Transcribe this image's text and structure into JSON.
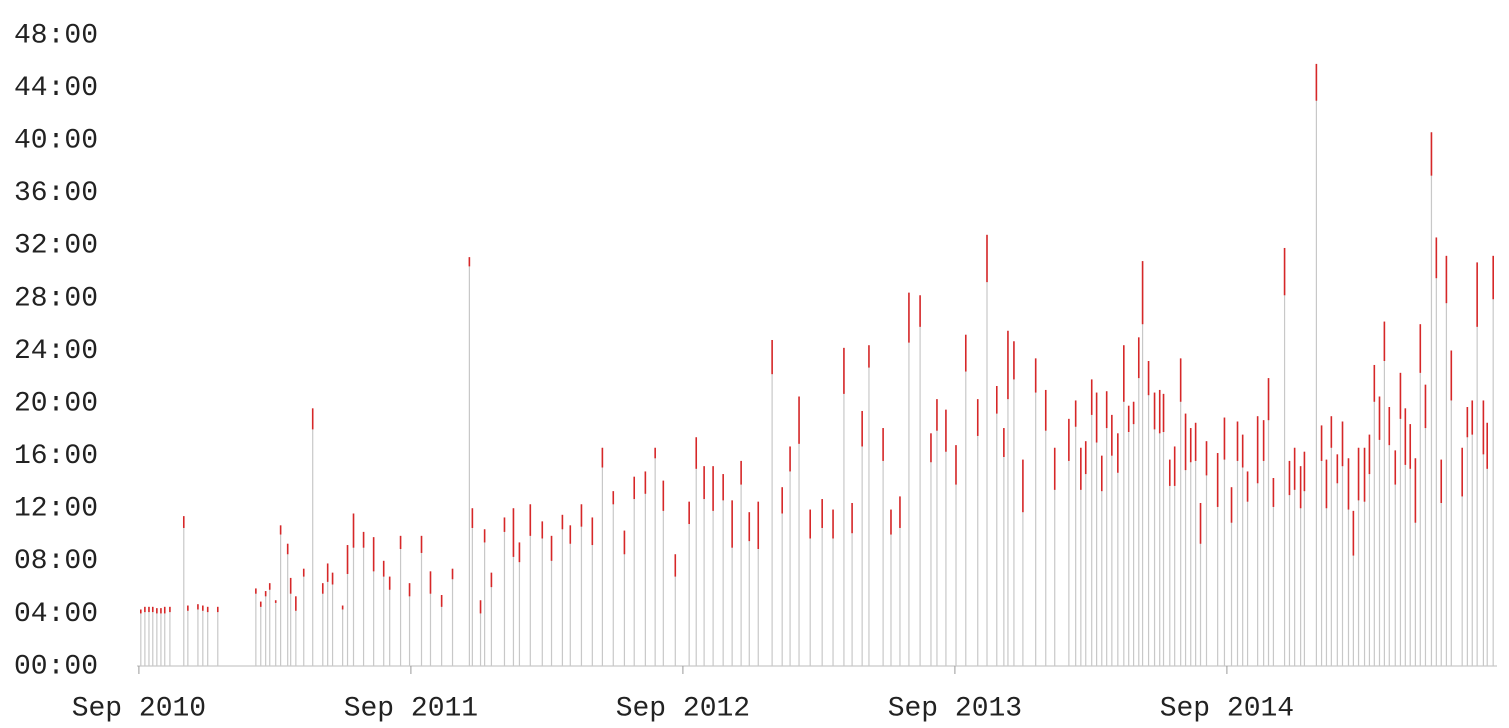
{
  "chart_data": {
    "type": "range",
    "xlim": [
      2010.66,
      2015.66
    ],
    "ylim": [
      0,
      48
    ],
    "xticks": [
      {
        "value": 2010.667,
        "label": "Sep 2010"
      },
      {
        "value": 2011.667,
        "label": "Sep 2011"
      },
      {
        "value": 2012.667,
        "label": "Sep 2012"
      },
      {
        "value": 2013.667,
        "label": "Sep 2013"
      },
      {
        "value": 2014.667,
        "label": "Sep 2014"
      }
    ],
    "yticks": [
      {
        "value": 0,
        "label": "00:00"
      },
      {
        "value": 4,
        "label": "04:00"
      },
      {
        "value": 8,
        "label": "08:00"
      },
      {
        "value": 12,
        "label": "12:00"
      },
      {
        "value": 16,
        "label": "16:00"
      },
      {
        "value": 20,
        "label": "20:00"
      },
      {
        "value": 24,
        "label": "24:00"
      },
      {
        "value": 28,
        "label": "28:00"
      },
      {
        "value": 32,
        "label": "32:00"
      },
      {
        "value": 36,
        "label": "36:00"
      },
      {
        "value": 40,
        "label": "40:00"
      },
      {
        "value": 44,
        "label": "44:00"
      },
      {
        "value": 48,
        "label": "48:00"
      }
    ],
    "stem_color": "#c8c8c8",
    "range_color": "#d62728",
    "x": [
      2010.674,
      2010.689,
      2010.704,
      2010.718,
      2010.733,
      2010.748,
      2010.762,
      2010.781,
      2010.832,
      2010.847,
      2010.884,
      2010.902,
      2010.92,
      2010.957,
      2011.097,
      2011.115,
      2011.133,
      2011.148,
      2011.17,
      2011.188,
      2011.214,
      2011.225,
      2011.244,
      2011.273,
      2011.306,
      2011.343,
      2011.361,
      2011.379,
      2011.416,
      2011.434,
      2011.456,
      2011.493,
      2011.53,
      2011.567,
      2011.589,
      2011.629,
      2011.662,
      2011.706,
      2011.739,
      2011.78,
      2011.82,
      2011.882,
      2011.893,
      2011.923,
      2011.938,
      2011.963,
      2012.011,
      2012.044,
      2012.066,
      2012.106,
      2012.15,
      2012.184,
      2012.224,
      2012.253,
      2012.294,
      2012.334,
      2012.371,
      2012.411,
      2012.452,
      2012.488,
      2012.529,
      2012.565,
      2012.595,
      2012.639,
      2012.69,
      2012.716,
      2012.745,
      2012.778,
      2012.815,
      2012.848,
      2012.881,
      2012.911,
      2012.944,
      2012.995,
      2013.032,
      2013.061,
      2013.094,
      2013.135,
      2013.179,
      2013.219,
      2013.259,
      2013.289,
      2013.326,
      2013.351,
      2013.403,
      2013.432,
      2013.465,
      2013.498,
      2013.539,
      2013.579,
      2013.601,
      2013.634,
      2013.671,
      2013.707,
      2013.751,
      2013.785,
      2013.821,
      2013.847,
      2013.862,
      2013.884,
      2013.917,
      2013.964,
      2014.001,
      2014.034,
      2014.086,
      2014.111,
      2014.13,
      2014.148,
      2014.17,
      2014.188,
      2014.207,
      2014.225,
      2014.244,
      2014.266,
      2014.288,
      2014.306,
      2014.324,
      2014.343,
      2014.357,
      2014.379,
      2014.401,
      2014.42,
      2014.434,
      2014.457,
      2014.475,
      2014.497,
      2014.515,
      2014.534,
      2014.552,
      2014.57,
      2014.592,
      2014.633,
      2014.658,
      2014.684,
      2014.706,
      2014.725,
      2014.743,
      2014.78,
      2014.802,
      2014.82,
      2014.838,
      2014.879,
      2014.897,
      2014.916,
      2014.938,
      2014.952,
      2014.996,
      2015.015,
      2015.033,
      2015.051,
      2015.073,
      2015.092,
      2015.114,
      2015.132,
      2015.151,
      2015.173,
      2015.191,
      2015.209,
      2015.228,
      2015.246,
      2015.264,
      2015.286,
      2015.305,
      2015.323,
      2015.341,
      2015.36,
      2015.378,
      2015.397,
      2015.419,
      2015.437,
      2015.455,
      2015.474,
      2015.492,
      2015.532,
      2015.551,
      2015.569,
      2015.587,
      2015.61,
      2015.624,
      2015.646
    ],
    "low": [
      4.0,
      4.1,
      4.1,
      4.1,
      4.0,
      4.0,
      4.0,
      4.1,
      10.5,
      4.2,
      4.3,
      4.2,
      4.1,
      4.1,
      5.5,
      4.5,
      5.3,
      5.8,
      4.8,
      10.0,
      8.5,
      5.5,
      4.2,
      6.8,
      18.0,
      5.5,
      6.4,
      6.2,
      4.3,
      7.0,
      9.0,
      9.0,
      7.2,
      6.8,
      5.8,
      8.9,
      5.3,
      8.6,
      5.5,
      4.5,
      6.6,
      30.4,
      10.5,
      4.0,
      9.4,
      6.0,
      10.2,
      8.3,
      7.9,
      9.9,
      9.7,
      8.0,
      10.4,
      9.3,
      10.6,
      9.2,
      15.1,
      12.3,
      8.5,
      12.7,
      13.1,
      15.8,
      11.8,
      6.8,
      10.8,
      15.0,
      12.7,
      11.8,
      12.6,
      9.0,
      13.8,
      9.5,
      8.9,
      22.2,
      11.6,
      14.8,
      16.9,
      9.7,
      10.5,
      9.7,
      20.7,
      10.1,
      16.7,
      22.7,
      15.6,
      10.0,
      10.5,
      24.6,
      25.8,
      15.5,
      17.9,
      16.3,
      13.8,
      22.4,
      17.5,
      29.2,
      19.2,
      15.9,
      20.3,
      21.8,
      11.7,
      20.8,
      17.9,
      13.4,
      15.6,
      18.2,
      13.4,
      14.6,
      19.1,
      17.0,
      13.3,
      18.1,
      16.0,
      14.7,
      20.1,
      17.8,
      18.4,
      21.9,
      26.0,
      20.6,
      18.0,
      17.7,
      17.8,
      13.7,
      13.7,
      20.1,
      14.9,
      15.5,
      15.6,
      9.3,
      14.5,
      12.1,
      15.7,
      10.9,
      15.6,
      15.1,
      12.5,
      13.9,
      15.6,
      18.7,
      12.1,
      28.2,
      13.0,
      13.4,
      12.0,
      13.3,
      43.0,
      15.6,
      12.0,
      16.6,
      13.9,
      15.2,
      11.9,
      8.4,
      12.6,
      12.5,
      14.6,
      20.1,
      17.2,
      23.2,
      16.8,
      13.8,
      18.8,
      15.3,
      15.0,
      10.9,
      22.3,
      18.1,
      37.3,
      29.5,
      12.4,
      27.6,
      20.2,
      12.9,
      17.4,
      17.6,
      25.8,
      16.1,
      15.0,
      27.9
    ],
    "high": [
      4.3,
      4.5,
      4.5,
      4.5,
      4.4,
      4.4,
      4.5,
      4.5,
      11.4,
      4.6,
      4.7,
      4.6,
      4.5,
      4.5,
      5.9,
      4.9,
      5.7,
      6.3,
      5.0,
      10.7,
      9.3,
      6.7,
      5.3,
      7.4,
      19.6,
      6.3,
      7.8,
      7.1,
      4.6,
      9.2,
      11.6,
      10.2,
      9.8,
      8.0,
      6.8,
      9.9,
      6.3,
      9.9,
      7.2,
      5.4,
      7.4,
      31.1,
      12.0,
      5.0,
      10.4,
      7.1,
      11.3,
      12.0,
      9.4,
      12.3,
      11.0,
      9.9,
      11.5,
      10.7,
      12.3,
      11.3,
      16.6,
      13.3,
      10.3,
      14.4,
      14.8,
      16.6,
      14.1,
      8.5,
      12.5,
      17.4,
      15.2,
      15.2,
      14.6,
      12.6,
      15.6,
      11.7,
      12.5,
      24.8,
      13.6,
      16.7,
      20.5,
      11.9,
      12.7,
      11.9,
      24.2,
      12.4,
      19.4,
      24.4,
      18.1,
      11.9,
      12.9,
      28.4,
      28.2,
      17.7,
      20.3,
      19.5,
      16.8,
      25.2,
      20.3,
      32.8,
      21.3,
      18.1,
      25.5,
      24.7,
      15.7,
      23.4,
      21.0,
      16.6,
      18.8,
      20.2,
      16.6,
      17.1,
      21.8,
      20.8,
      16.0,
      20.9,
      19.1,
      17.7,
      24.4,
      19.8,
      20.1,
      25.0,
      30.8,
      23.2,
      20.8,
      21.0,
      20.7,
      15.7,
      16.7,
      23.4,
      19.2,
      18.1,
      18.5,
      12.4,
      17.1,
      16.2,
      18.9,
      13.6,
      18.6,
      17.6,
      14.8,
      19.0,
      18.7,
      21.9,
      14.3,
      31.8,
      15.6,
      16.6,
      15.2,
      16.3,
      45.8,
      18.3,
      15.7,
      19.0,
      16.1,
      18.6,
      15.8,
      11.8,
      16.6,
      16.6,
      17.6,
      22.9,
      20.5,
      26.2,
      19.7,
      16.4,
      22.3,
      19.6,
      18.4,
      15.8,
      26.0,
      21.4,
      40.6,
      32.6,
      15.7,
      31.2,
      24.0,
      16.6,
      19.7,
      20.2,
      30.7,
      20.2,
      18.5,
      31.2
    ]
  }
}
